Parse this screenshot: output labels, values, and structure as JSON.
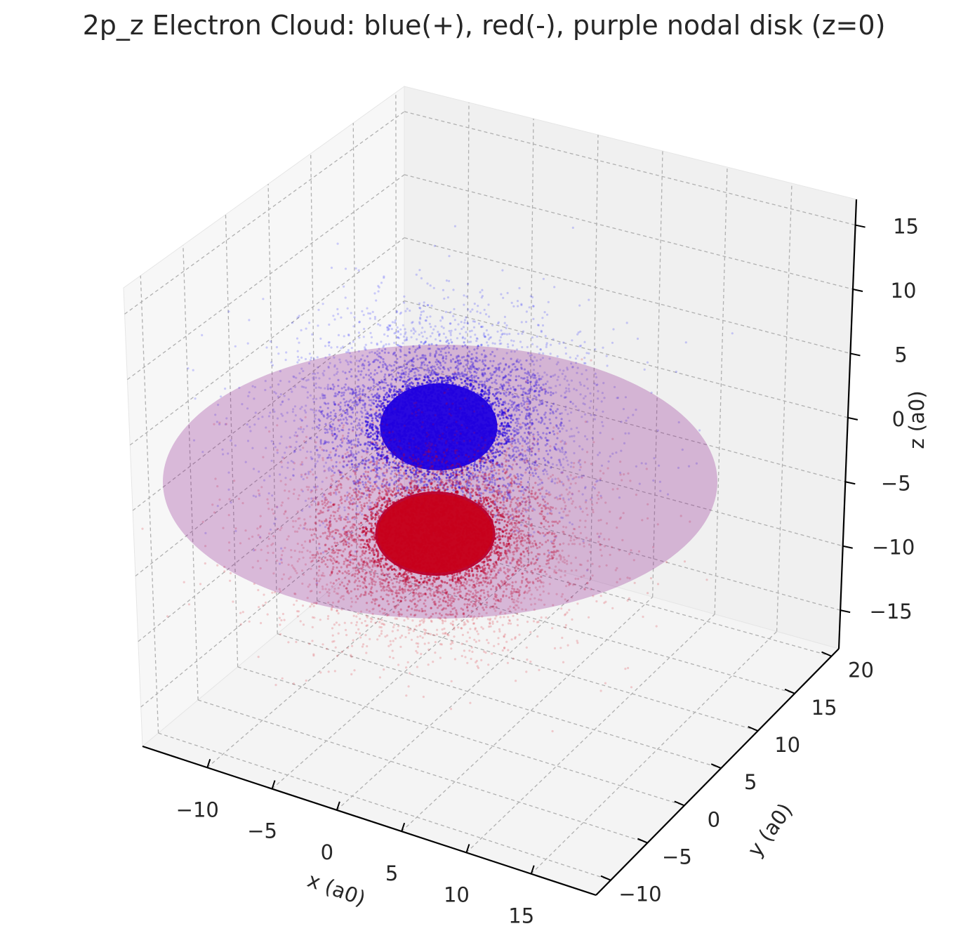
{
  "chart_data": {
    "type": "scatter",
    "projection": "3d",
    "title": "2p_z Electron Cloud: blue(+), red(-), purple nodal disk (z=0)",
    "xlabel": "x (a0)",
    "ylabel": "y (a0)",
    "zlabel": "z (a0)",
    "xlim": [
      -15,
      20
    ],
    "ylim": [
      -12,
      21
    ],
    "zlim": [
      -18,
      17
    ],
    "x_ticks": [
      "−10",
      "−5",
      "0",
      "5",
      "10",
      "15"
    ],
    "y_ticks": [
      "−10",
      "−5",
      "0",
      "5",
      "10",
      "15",
      "20"
    ],
    "z_ticks": [
      "−15",
      "−10",
      "−5",
      "0",
      "5",
      "10",
      "15"
    ],
    "grid": true,
    "series": [
      {
        "sign": "+",
        "color": "#0000ff",
        "lobe_center_z": 5,
        "points_approx": 40000
      },
      {
        "sign": "-",
        "color": "#d0000f",
        "lobe_center_z": -5,
        "points_approx": 40000
      }
    ],
    "nodal_disk": {
      "plane_z": 0,
      "radius": 20,
      "color": "#800080",
      "alpha": 0.25
    },
    "colors": {
      "pane": "#f2f2f2",
      "grid": "#b0b0b0",
      "axis": "#000000"
    }
  }
}
